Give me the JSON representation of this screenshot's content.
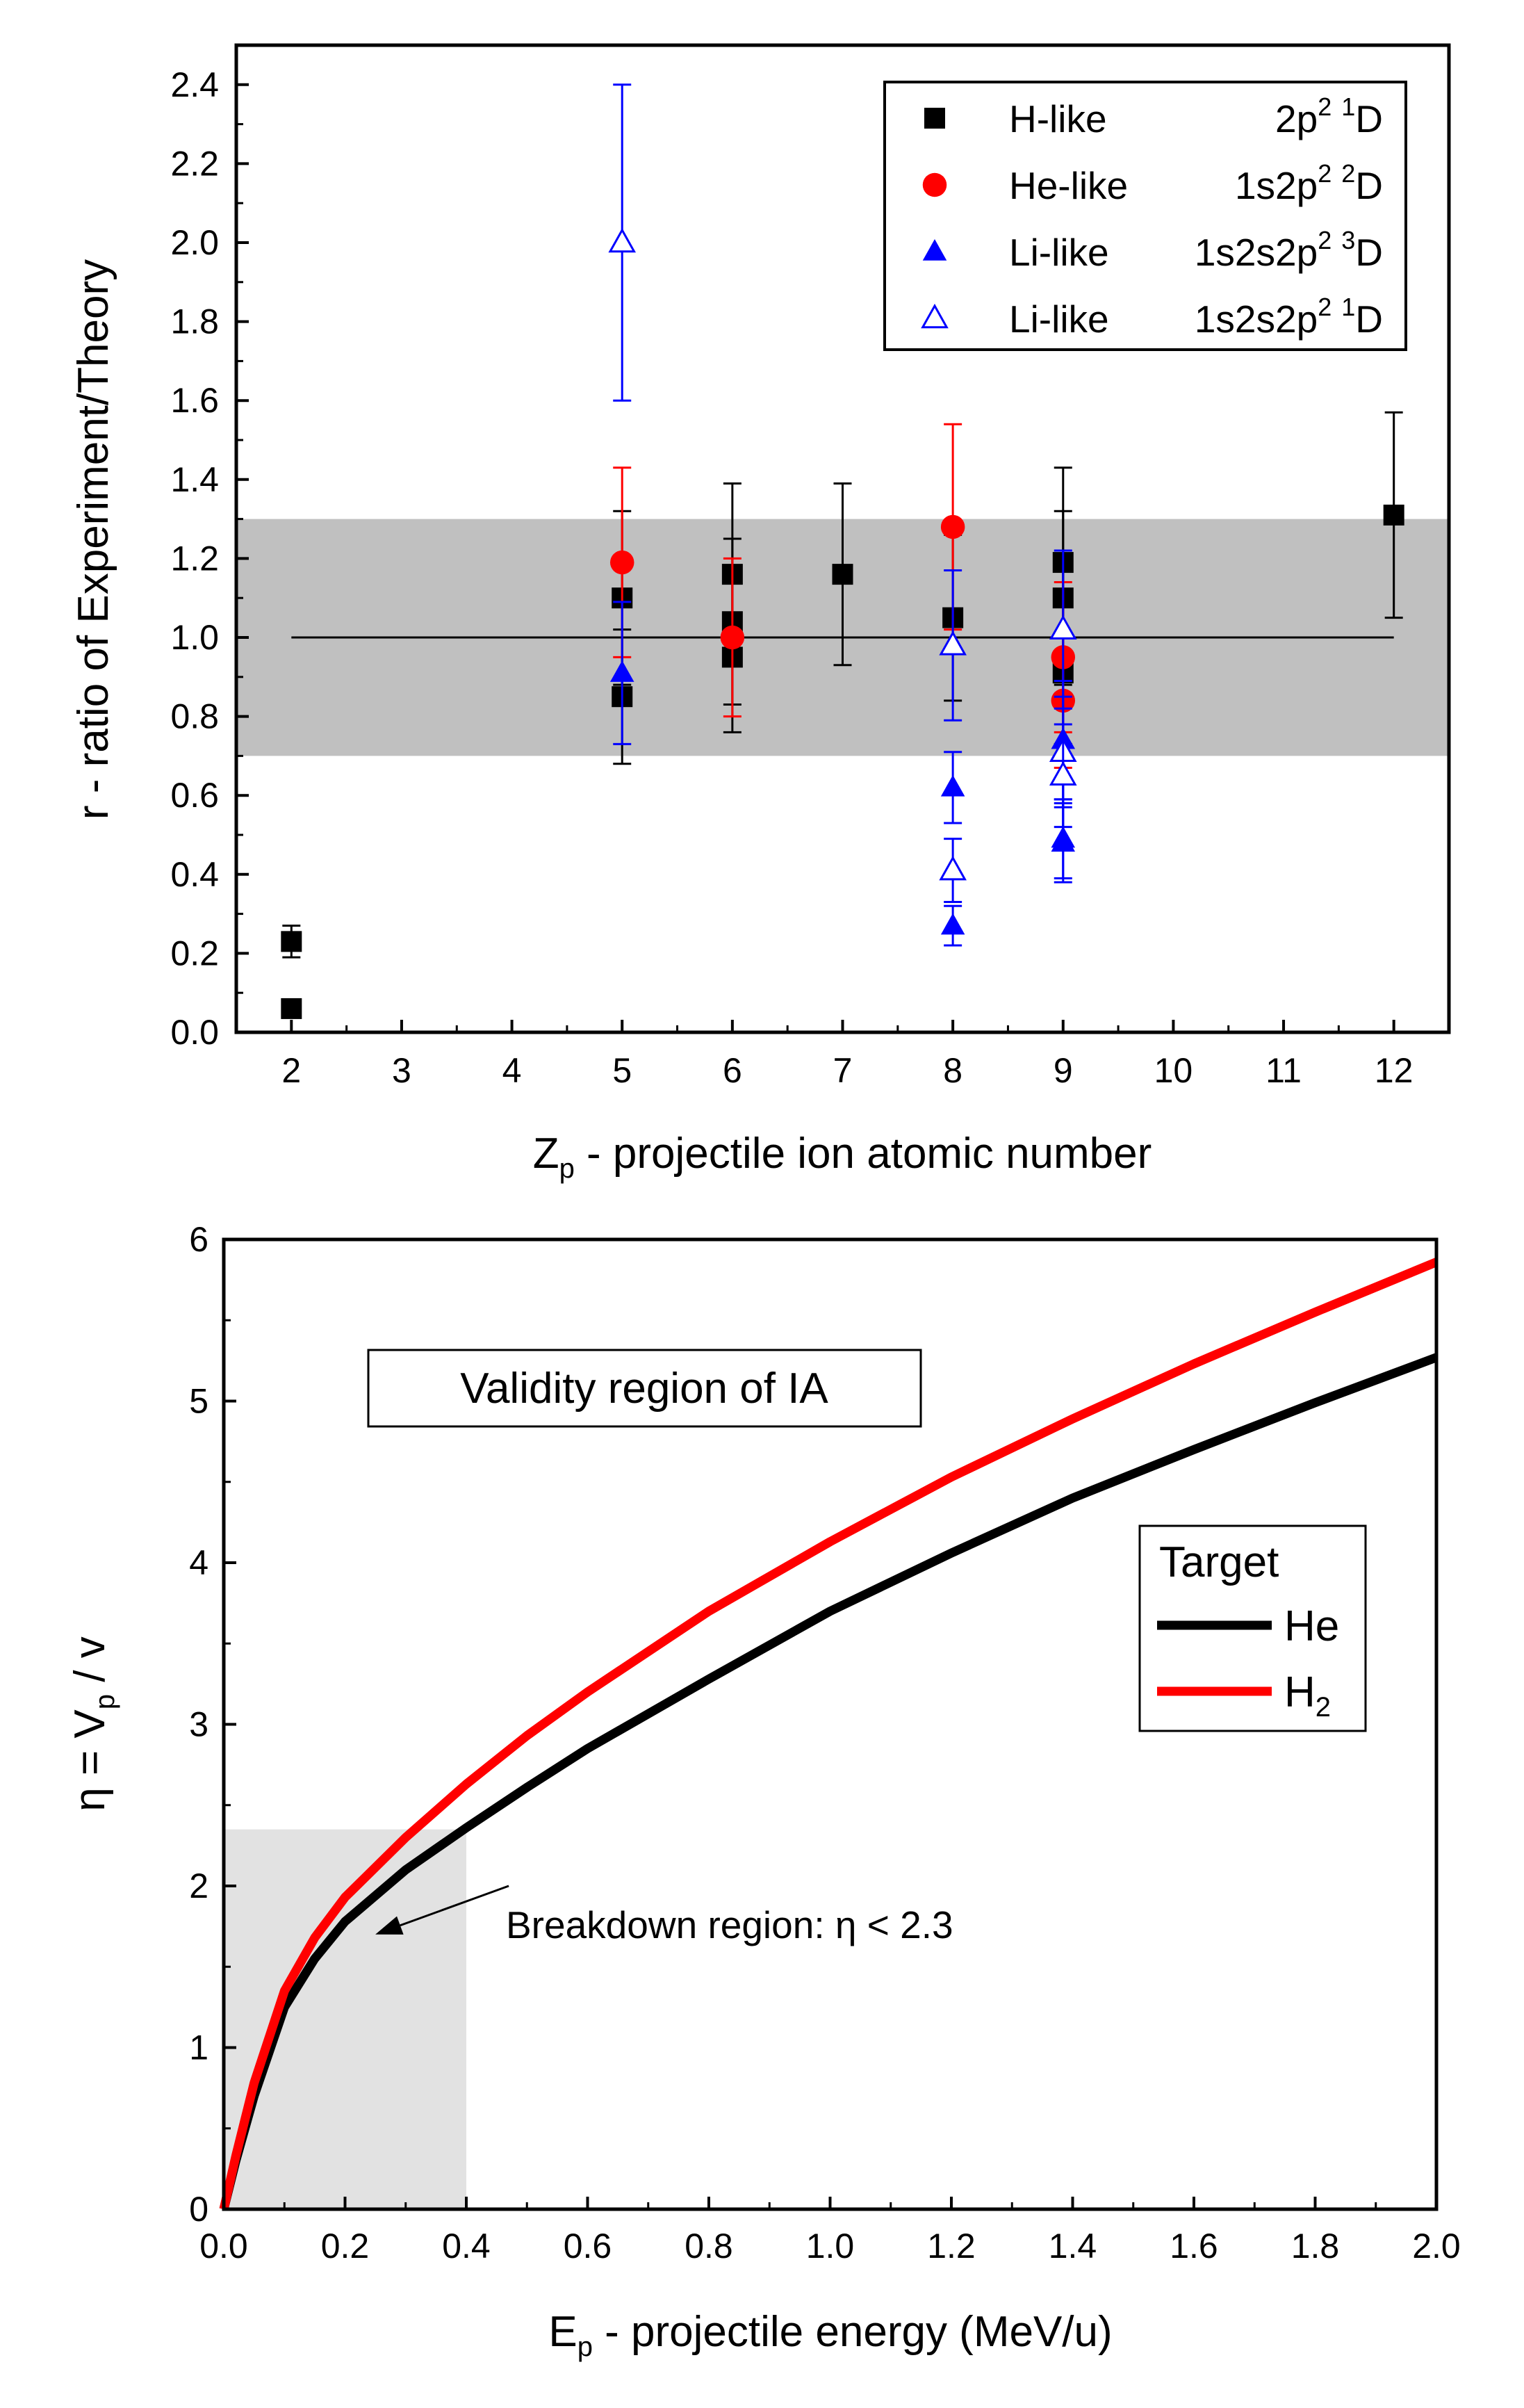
{
  "chart_data": [
    {
      "type": "scatter",
      "ylabel": "r - ratio of Experiment/Theory",
      "xlabel": {
        "main": "Z",
        "sub": "p",
        "rest": " - projectile ion atomic number"
      },
      "xlim": [
        1.5,
        12.5
      ],
      "ylim": [
        0,
        2.5
      ],
      "xticks": [
        "2",
        "3",
        "4",
        "5",
        "6",
        "7",
        "8",
        "9",
        "10",
        "11",
        "12"
      ],
      "yticks": [
        "0.0",
        "0.2",
        "0.4",
        "0.6",
        "0.8",
        "1.0",
        "1.2",
        "1.4",
        "1.6",
        "1.8",
        "2.0",
        "2.2",
        "2.4"
      ],
      "band": {
        "from": 0.7,
        "to": 1.3,
        "color": "#c0c0c0"
      },
      "reference_line": {
        "y": 1.0,
        "x": [
          2,
          12
        ]
      },
      "legend_position": "top-right",
      "series": [
        {
          "name": "H-like",
          "state": {
            "config": "2p",
            "sup1": "2",
            "sup2": "1",
            "term": "D"
          },
          "marker": "square",
          "color": "#000000",
          "points": [
            {
              "x": 2,
              "y": 0.23,
              "err": 0.04
            },
            {
              "x": 2,
              "y": 0.06,
              "err": 0
            },
            {
              "x": 5,
              "y": 1.1,
              "err": 0.22
            },
            {
              "x": 5,
              "y": 0.85,
              "err": 0.17
            },
            {
              "x": 6,
              "y": 1.16,
              "err": 0.23
            },
            {
              "x": 6,
              "y": 1.04,
              "err": 0.21
            },
            {
              "x": 6,
              "y": 0.95,
              "err": 0.19
            },
            {
              "x": 7,
              "y": 1.16,
              "err": 0.23
            },
            {
              "x": 8,
              "y": 1.05,
              "err": 0.21
            },
            {
              "x": 9,
              "y": 1.19,
              "err": 0.24
            },
            {
              "x": 9,
              "y": 1.1,
              "err": 0.22
            },
            {
              "x": 9,
              "y": 0.91,
              "err": 0.18
            },
            {
              "x": 12,
              "y": 1.31,
              "err": 0.26
            }
          ]
        },
        {
          "name": "He-like",
          "state": {
            "config": "1s2p",
            "sup1": "2",
            "sup2": "2",
            "term": "D"
          },
          "marker": "circle",
          "color": "#ff0000",
          "points": [
            {
              "x": 5,
              "y": 1.19,
              "err": 0.24
            },
            {
              "x": 6,
              "y": 1.0,
              "err": 0.2
            },
            {
              "x": 8,
              "y": 1.28,
              "err": 0.26
            },
            {
              "x": 9,
              "y": 0.95,
              "err": 0.19
            },
            {
              "x": 9,
              "y": 0.84,
              "err": 0.17
            }
          ]
        },
        {
          "name": "Li-like",
          "state": {
            "config": "1s2s2p",
            "sup1": "2",
            "sup2": "3",
            "term": "D"
          },
          "marker": "triangle",
          "color": "#0000ff",
          "points": [
            {
              "x": 5,
              "y": 0.91,
              "err": 0.18
            },
            {
              "x": 8,
              "y": 0.62,
              "err": 0.09
            },
            {
              "x": 8,
              "y": 0.27,
              "err": 0.05
            },
            {
              "x": 9,
              "y": 0.74,
              "err": 0.15
            },
            {
              "x": 9,
              "y": 0.49,
              "err": 0.1
            },
            {
              "x": 9,
              "y": 0.48,
              "err": 0.1
            }
          ]
        },
        {
          "name": "Li-like",
          "state": {
            "config": "1s2s2p",
            "sup1": "2",
            "sup2": "1",
            "term": "D"
          },
          "marker": "triangle-open",
          "color": "#0000ff",
          "points": [
            {
              "x": 5,
              "y": 2.0,
              "err": 0.4
            },
            {
              "x": 8,
              "y": 0.98,
              "err": 0.19
            },
            {
              "x": 8,
              "y": 0.41,
              "err": 0.08
            },
            {
              "x": 9,
              "y": 1.02,
              "err": 0.2
            },
            {
              "x": 9,
              "y": 0.71,
              "err": 0.14
            },
            {
              "x": 9,
              "y": 0.65,
              "err": 0.13
            }
          ]
        }
      ]
    },
    {
      "type": "line",
      "ylabel": {
        "pre": "η = V",
        "sub": "p",
        "post": " / v"
      },
      "xlabel": {
        "main": "E",
        "sub": "p",
        "rest": " - projectile energy (MeV/u)"
      },
      "xlim": [
        0,
        2.0
      ],
      "ylim": [
        0,
        6
      ],
      "xticks": [
        "0.0",
        "0.2",
        "0.4",
        "0.6",
        "0.8",
        "1.0",
        "1.2",
        "1.4",
        "1.6",
        "1.8",
        "2.0"
      ],
      "yticks": [
        "0",
        "1",
        "2",
        "3",
        "4",
        "5",
        "6"
      ],
      "region": {
        "x": [
          0,
          0.4
        ],
        "y": [
          0,
          2.35
        ],
        "color": "#e2e2e2"
      },
      "annotation_box": "Validity region of IA",
      "annotation_arrow": {
        "text": "Breakdown region: η < 2.3",
        "from": [
          0.47,
          2.0
        ],
        "to": [
          0.25,
          1.7
        ]
      },
      "legend_title": "Target",
      "legend_position": "right",
      "series": [
        {
          "name": "He",
          "color": "#000000",
          "x": [
            0,
            0.02,
            0.05,
            0.1,
            0.15,
            0.2,
            0.3,
            0.4,
            0.5,
            0.6,
            0.8,
            1.0,
            1.2,
            1.4,
            1.6,
            1.8,
            2.0
          ],
          "y": [
            0,
            0.3,
            0.7,
            1.25,
            1.55,
            1.78,
            2.1,
            2.36,
            2.61,
            2.85,
            3.28,
            3.7,
            4.06,
            4.4,
            4.7,
            4.99,
            5.27
          ]
        },
        {
          "name": "H",
          "name_sub": "2",
          "color": "#ff0000",
          "x": [
            0,
            0.02,
            0.05,
            0.1,
            0.15,
            0.2,
            0.3,
            0.4,
            0.5,
            0.6,
            0.8,
            1.0,
            1.2,
            1.4,
            1.6,
            1.8,
            2.0
          ],
          "y": [
            0,
            0.33,
            0.78,
            1.35,
            1.68,
            1.93,
            2.3,
            2.63,
            2.93,
            3.2,
            3.7,
            4.13,
            4.53,
            4.89,
            5.23,
            5.55,
            5.86
          ]
        }
      ]
    }
  ]
}
